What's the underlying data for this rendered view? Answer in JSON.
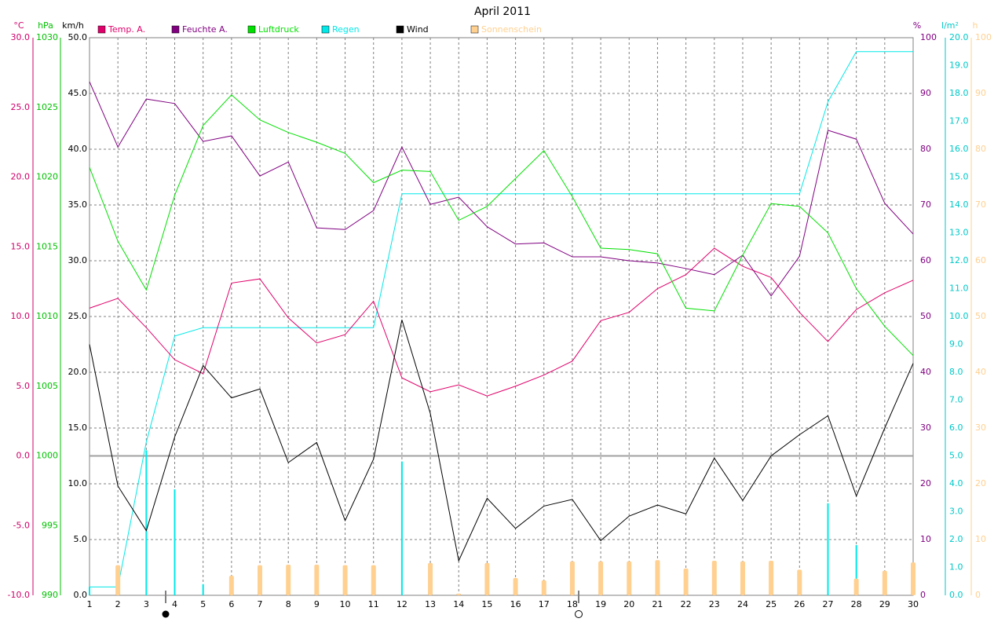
{
  "chart_data": {
    "type": "line",
    "title": "April 2011",
    "x": [
      1,
      2,
      3,
      4,
      5,
      6,
      7,
      8,
      9,
      10,
      11,
      12,
      13,
      14,
      15,
      16,
      17,
      18,
      19,
      20,
      21,
      22,
      23,
      24,
      25,
      26,
      27,
      28,
      29,
      30
    ],
    "xlim": [
      1,
      30
    ],
    "grid": true,
    "zero_line": true,
    "axes": [
      {
        "unit": "°C",
        "color": "#d0006a",
        "side": "left",
        "lim": [
          -10,
          30
        ],
        "ticks": [
          {
            "value": 30,
            "label": "30.0"
          },
          {
            "value": 25,
            "label": "25.0"
          },
          {
            "value": 20,
            "label": "20.0"
          },
          {
            "value": 15,
            "label": "15.0"
          },
          {
            "value": 10,
            "label": "10.0"
          },
          {
            "value": 5,
            "label": "5.0"
          },
          {
            "value": 0,
            "label": "0.0"
          },
          {
            "value": -5,
            "label": "-5.0"
          },
          {
            "value": -10,
            "label": "-10.0"
          }
        ]
      },
      {
        "unit": "hPa",
        "color": "#00c000",
        "side": "left",
        "lim": [
          990,
          1030
        ],
        "ticks": [
          1030,
          1025,
          1020,
          1015,
          1010,
          1005,
          1000,
          995,
          990
        ]
      },
      {
        "unit": "km/h",
        "color": "#000000",
        "side": "left",
        "lim": [
          0,
          50
        ],
        "ticks": [
          {
            "value": 50,
            "label": "50.0"
          },
          {
            "value": 45,
            "label": "45.0"
          },
          {
            "value": 40,
            "label": "40.0"
          },
          {
            "value": 35,
            "label": "35.0"
          },
          {
            "value": 30,
            "label": "30.0"
          },
          {
            "value": 25,
            "label": "25.0"
          },
          {
            "value": 20,
            "label": "20.0"
          },
          {
            "value": 15,
            "label": "15.0"
          },
          {
            "value": 10,
            "label": "10.0"
          },
          {
            "value": 5,
            "label": "5.0"
          },
          {
            "value": 0,
            "label": "0.0"
          }
        ]
      },
      {
        "unit": "%",
        "color": "#800080",
        "side": "right",
        "lim": [
          0,
          100
        ],
        "ticks": [
          100,
          90,
          80,
          70,
          60,
          50,
          40,
          30,
          20,
          10,
          0
        ]
      },
      {
        "unit": "l/m²",
        "color": "#00c8c8",
        "side": "right",
        "lim": [
          0,
          20
        ],
        "ticks": [
          {
            "value": 20,
            "label": "20.0"
          },
          {
            "value": 19,
            "label": "19.0"
          },
          {
            "value": 18,
            "label": "18.0"
          },
          {
            "value": 17,
            "label": "17.0"
          },
          {
            "value": 16,
            "label": "16.0"
          },
          {
            "value": 15,
            "label": "15.0"
          },
          {
            "value": 14,
            "label": "14.0"
          },
          {
            "value": 13,
            "label": "13.0"
          },
          {
            "value": 12,
            "label": "12.0"
          },
          {
            "value": 11,
            "label": "11.0"
          },
          {
            "value": 10,
            "label": "10.0"
          },
          {
            "value": 9,
            "label": "9.0"
          },
          {
            "value": 8,
            "label": "8.0"
          },
          {
            "value": 7,
            "label": "7.0"
          },
          {
            "value": 6,
            "label": "6.0"
          },
          {
            "value": 5,
            "label": "5.0"
          },
          {
            "value": 4,
            "label": "4.0"
          },
          {
            "value": 3,
            "label": "3.0"
          },
          {
            "value": 2,
            "label": "2.0"
          },
          {
            "value": 1,
            "label": "1.0"
          },
          {
            "value": 0,
            "label": "0.0"
          }
        ]
      },
      {
        "unit": "h",
        "color": "#ffd090",
        "side": "right",
        "lim": [
          0,
          100
        ],
        "ticks": [
          100,
          90,
          80,
          70,
          60,
          50,
          40,
          30,
          20,
          10,
          0
        ]
      }
    ],
    "series": [
      {
        "name": "Temp. A.",
        "color": "#e0006a",
        "axis": 0,
        "kind": "line",
        "values": [
          10.6,
          11.3,
          9.2,
          6.9,
          5.9,
          12.4,
          12.7,
          9.9,
          8.1,
          8.7,
          11.1,
          5.6,
          4.6,
          5.1,
          4.3,
          5.0,
          5.8,
          6.8,
          9.7,
          10.3,
          12.0,
          13.0,
          14.9,
          13.6,
          12.8,
          10.3,
          8.2,
          10.5,
          11.7,
          12.6
        ]
      },
      {
        "name": "Feuchte A.",
        "color": "#800080",
        "axis": 3,
        "kind": "line",
        "values": [
          92.1,
          80.4,
          89.0,
          88.2,
          81.4,
          82.4,
          75.2,
          77.7,
          65.9,
          65.6,
          69.0,
          80.4,
          70.1,
          71.4,
          66.1,
          63.0,
          63.2,
          60.7,
          60.7,
          60.0,
          59.6,
          58.6,
          57.5,
          61.0,
          53.7,
          60.8,
          83.4,
          81.8,
          70.3,
          64.8
        ]
      },
      {
        "name": "Luftdruck",
        "color": "#00e000",
        "axis": 1,
        "kind": "line",
        "values": [
          1020.7,
          1015.4,
          1011.9,
          1018.7,
          1023.7,
          1025.9,
          1024.1,
          1023.2,
          1022.5,
          1021.7,
          1019.6,
          1020.5,
          1020.4,
          1016.9,
          1017.9,
          1019.9,
          1021.9,
          1018.6,
          1014.9,
          1014.8,
          1014.5,
          1010.6,
          1010.4,
          1014.4,
          1018.1,
          1017.9,
          1016.0,
          1012.0,
          1009.3,
          1007.2
        ]
      },
      {
        "name": "Regen",
        "color": "#00e8e8",
        "axis": 4,
        "kind": "bar",
        "values": [
          0.3,
          0,
          5.2,
          3.8,
          0.4,
          0,
          0,
          0,
          0,
          0,
          0,
          4.8,
          0,
          0,
          0,
          0,
          0,
          0,
          0,
          0,
          0,
          0,
          0,
          0,
          0,
          0,
          3.3,
          1.8,
          0,
          0
        ],
        "cumulative": [
          0.3,
          0.3,
          5.5,
          9.3,
          9.6,
          9.6,
          9.6,
          9.6,
          9.6,
          9.6,
          9.6,
          14.4,
          14.4,
          14.4,
          14.4,
          14.4,
          14.4,
          14.4,
          14.4,
          14.4,
          14.4,
          14.4,
          14.4,
          14.4,
          14.4,
          14.4,
          17.7,
          19.5,
          19.5,
          19.5
        ]
      },
      {
        "name": "Wind",
        "color": "#000000",
        "axis": 2,
        "kind": "line",
        "values": [
          22.5,
          9.8,
          5.8,
          14.2,
          20.6,
          17.7,
          18.5,
          11.9,
          13.7,
          6.7,
          12.2,
          24.7,
          16.3,
          3.1,
          8.7,
          6.0,
          8.0,
          8.6,
          4.9,
          7.1,
          8.1,
          7.3,
          12.3,
          8.5,
          12.5,
          14.4,
          16.1,
          8.9,
          15.0,
          20.8
        ]
      },
      {
        "name": "Sonnenschein",
        "color": "#ffd090",
        "axis": 5,
        "kind": "bar",
        "values": [
          0,
          5.4,
          0,
          0,
          0,
          3.5,
          5.4,
          5.5,
          5.5,
          5.4,
          5.4,
          0,
          5.8,
          0.3,
          5.8,
          3.1,
          2.7,
          6.1,
          6.1,
          6.1,
          6.3,
          4.8,
          6.2,
          6.1,
          6.2,
          4.6,
          0,
          3.0,
          4.4,
          5.9
        ]
      }
    ]
  }
}
